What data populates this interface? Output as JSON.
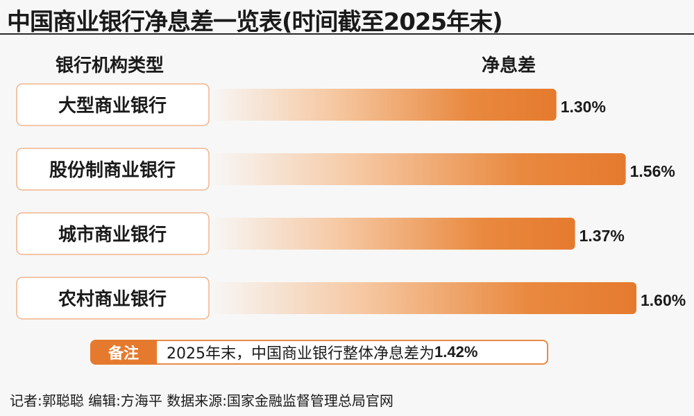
{
  "title": "中国商业银行净息差一览表(时间截至2025年末)",
  "header": {
    "category_col": "银行机构类型",
    "value_col": "净息差"
  },
  "chart_data": {
    "type": "bar",
    "orientation": "horizontal",
    "categories": [
      "大型商业银行",
      "股份制商业银行",
      "城市商业银行",
      "农村商业银行"
    ],
    "values": [
      1.3,
      1.56,
      1.37,
      1.6
    ],
    "value_labels": [
      "1.30%",
      "1.56%",
      "1.37%",
      "1.60%"
    ],
    "unit": "%",
    "bar_color": "#e57a2e"
  },
  "note": {
    "label": "备注",
    "text_prefix": "2025年末，中国商业银行整体净息差为",
    "text_value": "1.42%"
  },
  "footer": "记者:郭聪聪 编辑:方海平 数据来源:国家金融监督管理总局官网"
}
